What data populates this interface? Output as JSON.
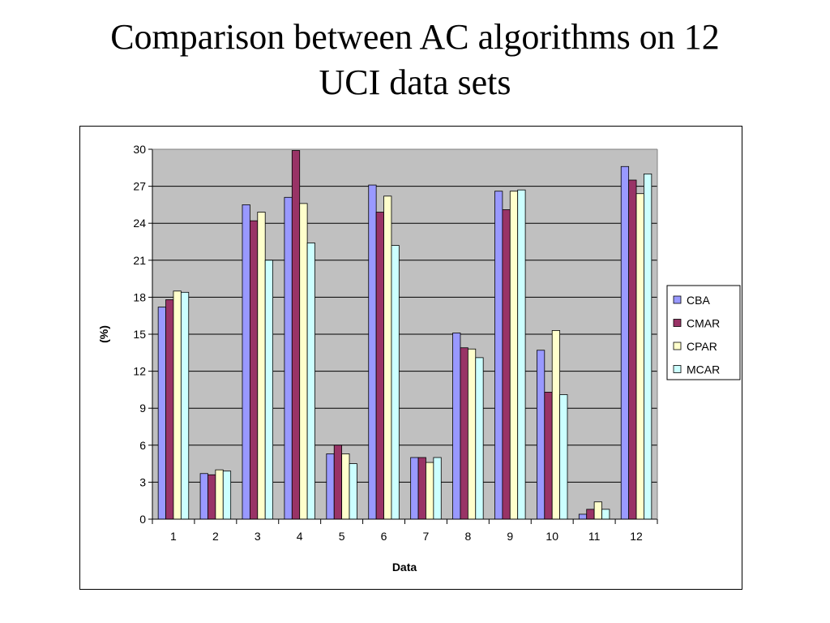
{
  "slide": {
    "title_line1": "Comparison between AC algorithms on 12",
    "title_line2": "UCI data sets"
  },
  "chart_data": {
    "type": "bar",
    "title": "Comparison between AC algorithms on 12 UCI data sets",
    "xlabel": "Data",
    "ylabel": "(%)",
    "ylim": [
      0,
      30
    ],
    "yticks": [
      0,
      3,
      6,
      9,
      12,
      15,
      18,
      21,
      24,
      27,
      30
    ],
    "grid": true,
    "legend_position": "right",
    "plot_background": "#c0c0c0",
    "categories": [
      "1",
      "2",
      "3",
      "4",
      "5",
      "6",
      "7",
      "8",
      "9",
      "10",
      "11",
      "12"
    ],
    "series": [
      {
        "name": "CBA",
        "color": "#9999ff",
        "values": [
          17.2,
          3.7,
          25.5,
          26.1,
          5.3,
          27.1,
          5.0,
          15.1,
          26.6,
          13.7,
          0.4,
          28.6
        ]
      },
      {
        "name": "CMAR",
        "color": "#993366",
        "values": [
          17.8,
          3.6,
          24.2,
          29.9,
          6.0,
          24.9,
          5.0,
          13.9,
          25.1,
          10.3,
          0.8,
          27.5
        ]
      },
      {
        "name": "CPAR",
        "color": "#ffffcc",
        "values": [
          18.5,
          4.0,
          24.9,
          25.6,
          5.3,
          26.2,
          4.6,
          13.8,
          26.6,
          15.3,
          1.4,
          26.4
        ]
      },
      {
        "name": "MCAR",
        "color": "#ccffff",
        "values": [
          18.4,
          3.9,
          21.0,
          22.4,
          4.5,
          22.2,
          5.0,
          13.1,
          26.7,
          10.1,
          0.8,
          28.0
        ]
      }
    ]
  }
}
